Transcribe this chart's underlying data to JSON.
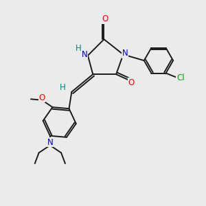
{
  "background_color": "#ebebeb",
  "atom_colors": {
    "O": "#ff0000",
    "N": "#0000cc",
    "Cl": "#00aa00",
    "H_label": "#008080",
    "C": "#000000"
  },
  "bond_color": "#1a1a1a",
  "lw": 1.4
}
